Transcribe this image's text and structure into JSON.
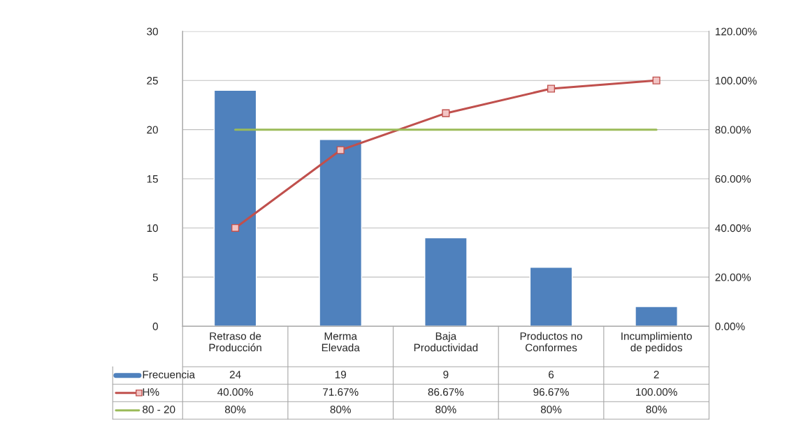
{
  "chart_data": {
    "type": "bar",
    "categories": [
      "Retraso de\nProducción",
      "Merma\nElevada",
      "Baja\nProductividad",
      "Productos no\nConformes",
      "Incumplimiento\nde pedidos"
    ],
    "series": [
      {
        "name": "Frecuencia",
        "color": "#4f81bd",
        "values": [
          24,
          19,
          9,
          6,
          2
        ],
        "value_labels": [
          "24",
          "19",
          "9",
          "6",
          "2"
        ]
      },
      {
        "name": "H%",
        "type": "line",
        "axis": "y2",
        "color": "#c0504d",
        "marker": "square",
        "values": [
          40.0,
          71.67,
          86.67,
          96.67,
          100.0
        ],
        "value_labels": [
          "40.00%",
          "71.67%",
          "86.67%",
          "96.67%",
          "100.00%"
        ]
      },
      {
        "name": "80 - 20",
        "type": "line",
        "axis": "y2",
        "color": "#9bbb59",
        "marker": "none",
        "values": [
          80,
          80,
          80,
          80,
          80
        ],
        "value_labels": [
          "80%",
          "80%",
          "80%",
          "80%",
          "80%"
        ]
      }
    ],
    "ylim": [
      0,
      30
    ],
    "yticks": [
      0,
      5,
      10,
      15,
      20,
      25,
      30
    ],
    "y2lim": [
      0,
      120
    ],
    "y2ticks": [
      {
        "value": 0,
        "label": "0.00%"
      },
      {
        "value": 20,
        "label": "20.00%"
      },
      {
        "value": 40,
        "label": "40.00%"
      },
      {
        "value": 60,
        "label": "60.00%"
      },
      {
        "value": 80,
        "label": "80.00%"
      },
      {
        "value": 100,
        "label": "100.00%"
      },
      {
        "value": 120,
        "label": "120.00%"
      }
    ],
    "grid": "y",
    "legend": "bottom"
  }
}
